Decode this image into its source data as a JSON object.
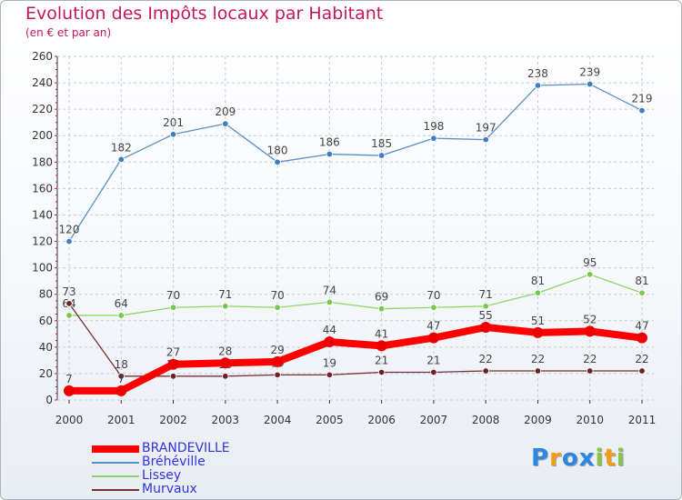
{
  "chart_data": {
    "type": "line",
    "title": "Evolution des Impôts locaux par Habitant",
    "subtitle": "(en € et par an)",
    "x": [
      "2000",
      "2001",
      "2002",
      "2003",
      "2004",
      "2005",
      "2006",
      "2007",
      "2008",
      "2009",
      "2010",
      "2011"
    ],
    "ylim": [
      0,
      260
    ],
    "yticks": [
      0,
      20,
      40,
      60,
      80,
      100,
      120,
      140,
      160,
      180,
      200,
      220,
      240,
      260
    ],
    "grid": true,
    "legend_position": "bottom-left",
    "series": [
      {
        "name": "Bréhéville",
        "color": "#5a8fc8",
        "marker": "#3d7fc0",
        "values": [
          120,
          182,
          201,
          209,
          180,
          186,
          185,
          198,
          197,
          238,
          239,
          219
        ]
      },
      {
        "name": "Lissey",
        "color": "#8fd66a",
        "marker": "#79c650",
        "values": [
          64,
          64,
          70,
          71,
          70,
          74,
          69,
          70,
          71,
          81,
          95,
          81
        ]
      },
      {
        "name": "Murvaux",
        "color": "#7a2f34",
        "marker": "#6b2228",
        "values": [
          73,
          18,
          18,
          18,
          19,
          19,
          21,
          21,
          22,
          22,
          22,
          22
        ]
      },
      {
        "name": "BRANDEVILLE",
        "color": "#ff0000",
        "marker": "#ee0000",
        "values": [
          7,
          7,
          27,
          28,
          29,
          44,
          41,
          47,
          55,
          51,
          52,
          47
        ]
      }
    ],
    "legend": [
      {
        "name": "BRANDEVILLE",
        "color": "#ff0000",
        "text_color": "#3333dd"
      },
      {
        "name": "Bréhéville",
        "color": "#5a8fc8",
        "text_color": "#3333dd"
      },
      {
        "name": "Lissey",
        "color": "#8fd66a",
        "text_color": "#3333dd"
      },
      {
        "name": "Murvaux",
        "color": "#7a2f34",
        "text_color": "#3333dd"
      }
    ]
  },
  "logo": {
    "letters": [
      "P",
      "r",
      "o",
      "x",
      "i",
      "t",
      "i"
    ],
    "colors": [
      "#2e86de",
      "#f39c12",
      "#2e86de",
      "#2e86de",
      "#8bc34a",
      "#f39c12",
      "#8bc34a"
    ]
  }
}
